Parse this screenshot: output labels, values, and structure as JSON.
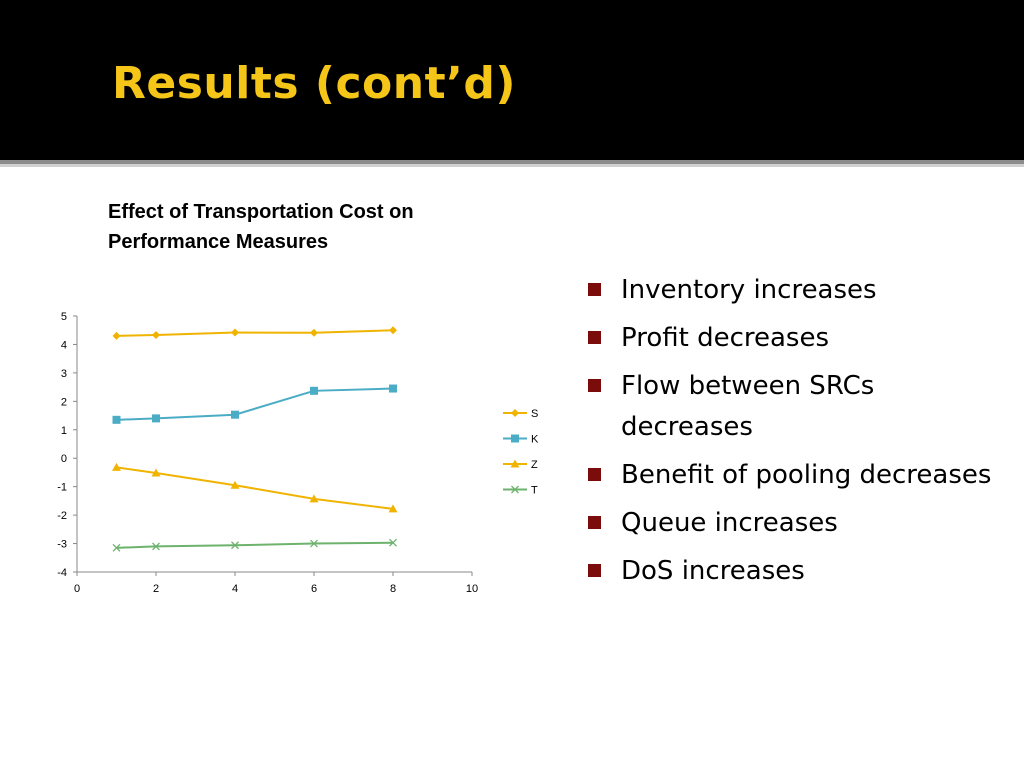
{
  "slide": {
    "title": "Results (cont’d)"
  },
  "bullets": [
    "Inventory increases",
    "Profit decreases",
    "Flow between SRCs decreases",
    "Benefit of pooling decreases",
    "Queue increases",
    "DoS increases"
  ],
  "colors": {
    "header_bg": "#000000",
    "title": "#f5c518",
    "bullet_marker": "#7a0c0c"
  },
  "chart_data": {
    "type": "line",
    "title": "Effect of Transportation Cost on Performance Measures",
    "xlim": [
      0,
      10
    ],
    "ylim": [
      -4,
      5
    ],
    "x_ticks": [
      0,
      2,
      4,
      6,
      8,
      10
    ],
    "y_ticks": [
      5,
      4,
      3,
      2,
      1,
      0,
      -1,
      -2,
      -3,
      -4
    ],
    "grid": false,
    "legend_position": "right",
    "series": [
      {
        "name": "S",
        "color": "#f0b400",
        "marker": "diamond",
        "x": [
          1,
          2,
          4,
          6,
          8
        ],
        "y": [
          4.3,
          4.33,
          4.42,
          4.41,
          4.5
        ]
      },
      {
        "name": "K",
        "color": "#4bacc6",
        "marker": "square",
        "x": [
          1,
          2,
          4,
          6,
          8
        ],
        "y": [
          1.35,
          1.4,
          1.53,
          2.37,
          2.45
        ]
      },
      {
        "name": "Z",
        "color": "#f0b400",
        "marker": "triangle",
        "x": [
          1,
          2,
          4,
          6,
          8
        ],
        "y": [
          -0.32,
          -0.52,
          -0.95,
          -1.43,
          -1.78
        ]
      },
      {
        "name": "T",
        "color": "#6db26d",
        "marker": "x",
        "x": [
          1,
          2,
          4,
          6,
          8
        ],
        "y": [
          -3.15,
          -3.1,
          -3.06,
          -3.0,
          -2.97
        ]
      }
    ]
  }
}
